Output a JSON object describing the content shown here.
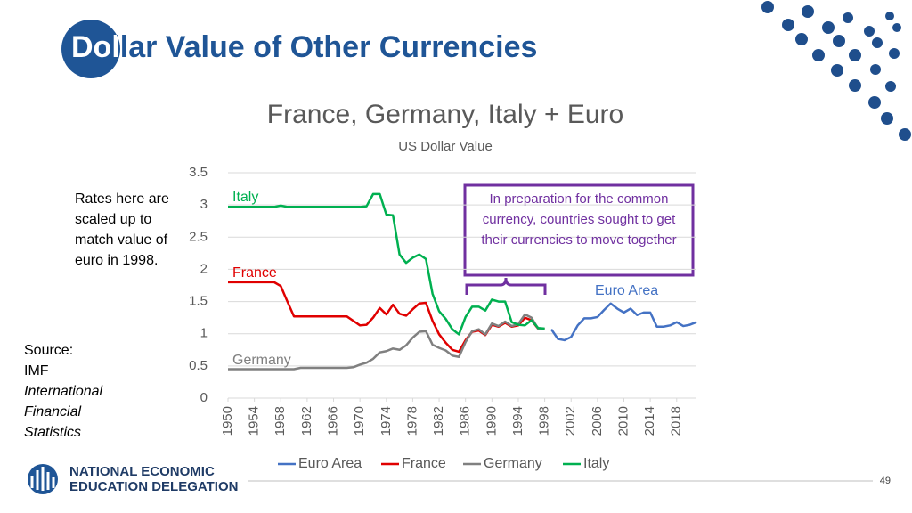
{
  "slide_title": "Dollar Value of Other Currencies",
  "note": "Rates here are scaled up to match value of euro in 1998.",
  "source": {
    "label": "Source:",
    "publisher": "IMF",
    "publication": "International Financial Statistics"
  },
  "footer": {
    "org_line1": "NATIONAL ECONOMIC",
    "org_line2": "EDUCATION DELEGATION",
    "page": 49
  },
  "chart_data": {
    "type": "line",
    "title": "France, Germany, Italy + Euro",
    "subtitle": "US Dollar Value",
    "annotation": "In preparation for the common currency, countries sought to get their currencies to move together",
    "x": [
      1950,
      1951,
      1952,
      1953,
      1954,
      1955,
      1956,
      1957,
      1958,
      1959,
      1960,
      1961,
      1962,
      1963,
      1964,
      1965,
      1966,
      1967,
      1968,
      1969,
      1970,
      1971,
      1972,
      1973,
      1974,
      1975,
      1976,
      1977,
      1978,
      1979,
      1980,
      1981,
      1982,
      1983,
      1984,
      1985,
      1986,
      1987,
      1988,
      1989,
      1990,
      1991,
      1992,
      1993,
      1994,
      1995,
      1996,
      1997,
      1998,
      1999,
      2000,
      2001,
      2002,
      2003,
      2004,
      2005,
      2006,
      2007,
      2008,
      2009,
      2010,
      2011,
      2012,
      2013,
      2014,
      2015,
      2016,
      2017,
      2018,
      2019,
      2020,
      2021
    ],
    "series": [
      {
        "name": "Euro Area",
        "color": "#4472c4",
        "values": [
          null,
          null,
          null,
          null,
          null,
          null,
          null,
          null,
          null,
          null,
          null,
          null,
          null,
          null,
          null,
          null,
          null,
          null,
          null,
          null,
          null,
          null,
          null,
          null,
          null,
          null,
          null,
          null,
          null,
          null,
          null,
          null,
          null,
          null,
          null,
          null,
          null,
          null,
          null,
          null,
          null,
          null,
          null,
          null,
          null,
          null,
          null,
          null,
          null,
          1.07,
          0.92,
          0.9,
          0.95,
          1.13,
          1.24,
          1.24,
          1.26,
          1.37,
          1.47,
          1.39,
          1.33,
          1.39,
          1.29,
          1.33,
          1.33,
          1.11,
          1.11,
          1.13,
          1.18,
          1.12,
          1.14,
          1.18
        ]
      },
      {
        "name": "France",
        "color": "#e00000",
        "values": [
          1.8,
          1.8,
          1.8,
          1.8,
          1.8,
          1.8,
          1.8,
          1.8,
          1.74,
          1.5,
          1.27,
          1.27,
          1.27,
          1.27,
          1.27,
          1.27,
          1.27,
          1.27,
          1.27,
          1.2,
          1.13,
          1.14,
          1.25,
          1.4,
          1.3,
          1.45,
          1.31,
          1.28,
          1.38,
          1.47,
          1.48,
          1.2,
          0.99,
          0.86,
          0.75,
          0.72,
          0.9,
          1.03,
          1.05,
          0.98,
          1.14,
          1.11,
          1.17,
          1.11,
          1.13,
          1.25,
          1.21,
          1.08,
          1.07,
          null,
          null,
          null,
          null,
          null,
          null,
          null,
          null,
          null,
          null,
          null,
          null,
          null,
          null,
          null,
          null,
          null,
          null,
          null,
          null,
          null,
          null,
          null
        ]
      },
      {
        "name": "Germany",
        "color": "#808080",
        "values": [
          0.45,
          0.45,
          0.45,
          0.45,
          0.45,
          0.45,
          0.45,
          0.45,
          0.45,
          0.45,
          0.45,
          0.47,
          0.47,
          0.47,
          0.47,
          0.47,
          0.47,
          0.47,
          0.47,
          0.48,
          0.52,
          0.55,
          0.61,
          0.71,
          0.73,
          0.77,
          0.75,
          0.82,
          0.94,
          1.03,
          1.04,
          0.83,
          0.78,
          0.74,
          0.66,
          0.64,
          0.87,
          1.04,
          1.07,
          0.99,
          1.16,
          1.12,
          1.19,
          1.12,
          1.15,
          1.3,
          1.25,
          1.08,
          1.07,
          null,
          null,
          null,
          null,
          null,
          null,
          null,
          null,
          null,
          null,
          null,
          null,
          null,
          null,
          null,
          null,
          null,
          null,
          null,
          null,
          null,
          null,
          null
        ]
      },
      {
        "name": "Italy",
        "color": "#00b050",
        "values": [
          2.97,
          2.97,
          2.97,
          2.97,
          2.97,
          2.97,
          2.97,
          2.97,
          2.99,
          2.97,
          2.97,
          2.97,
          2.97,
          2.97,
          2.97,
          2.97,
          2.97,
          2.97,
          2.97,
          2.97,
          2.97,
          2.98,
          3.17,
          3.17,
          2.85,
          2.84,
          2.23,
          2.1,
          2.18,
          2.23,
          2.16,
          1.62,
          1.35,
          1.23,
          1.07,
          0.99,
          1.26,
          1.42,
          1.42,
          1.36,
          1.53,
          1.5,
          1.5,
          1.18,
          1.14,
          1.13,
          1.21,
          1.09,
          1.08,
          null,
          null,
          null,
          null,
          null,
          null,
          null,
          null,
          null,
          null,
          null,
          null,
          null,
          null,
          null,
          null,
          null,
          null,
          null,
          null,
          null,
          null,
          null
        ]
      }
    ],
    "xlim": [
      1950,
      2021
    ],
    "xticks": [
      1950,
      1954,
      1958,
      1962,
      1966,
      1970,
      1974,
      1978,
      1982,
      1986,
      1990,
      1994,
      1998,
      2002,
      2006,
      2010,
      2014,
      2018
    ],
    "ylim": [
      0,
      3.5
    ],
    "yticks": [
      0,
      0.5,
      1,
      1.5,
      2,
      2.5,
      3,
      3.5
    ],
    "grid": true,
    "legend": "bottom"
  }
}
